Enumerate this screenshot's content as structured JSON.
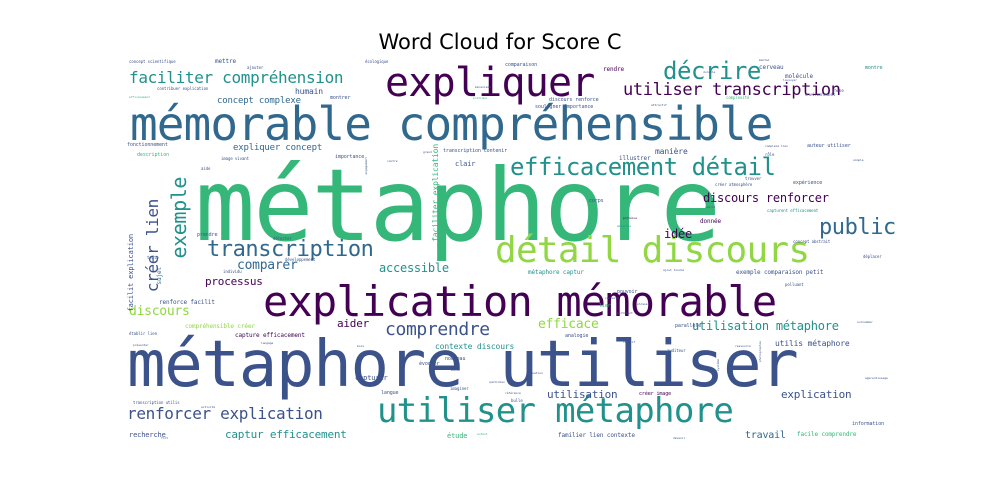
{
  "title": "Word Cloud for Score C",
  "palette": {
    "dark_purple": "#440154",
    "indigo": "#3b528b",
    "blue": "#31688e",
    "teal": "#21918c",
    "green": "#35b779",
    "lime": "#90d743",
    "yellow": "#fde725"
  },
  "words": [
    {
      "text": "métaphore",
      "weight": 100
    },
    {
      "text": "mémorable compréhensible",
      "weight": 46
    },
    {
      "text": "métaphore utiliser",
      "weight": 64
    },
    {
      "text": "explication mémorable",
      "weight": 42
    },
    {
      "text": "utiliser métaphore",
      "weight": 34
    },
    {
      "text": "expliquer",
      "weight": 40
    },
    {
      "text": "détail discours",
      "weight": 36
    },
    {
      "text": "efficacement détail",
      "weight": 24
    },
    {
      "text": "décrire",
      "weight": 24
    },
    {
      "text": "transcription",
      "weight": 22
    },
    {
      "text": "public",
      "weight": 22
    },
    {
      "text": "exemple",
      "weight": 20
    },
    {
      "text": "créer lien",
      "weight": 16
    },
    {
      "text": "comprendre",
      "weight": 18
    },
    {
      "text": "utiliser transcription",
      "weight": 17
    },
    {
      "text": "faciliter compréhension",
      "weight": 16
    },
    {
      "text": "renforcer explication",
      "weight": 16
    },
    {
      "text": "captur efficacement",
      "weight": 11
    },
    {
      "text": "comparer",
      "weight": 13
    },
    {
      "text": "accessible",
      "weight": 12
    },
    {
      "text": "discours",
      "weight": 13
    },
    {
      "text": "efficace",
      "weight": 13
    },
    {
      "text": "processus",
      "weight": 11
    },
    {
      "text": "aider",
      "weight": 11
    },
    {
      "text": "discours renforcer",
      "weight": 12
    },
    {
      "text": "idée",
      "weight": 12
    },
    {
      "text": "utilisation métaphore",
      "weight": 12
    },
    {
      "text": "explication",
      "weight": 11
    },
    {
      "text": "utilisation",
      "weight": 11
    },
    {
      "text": "travail",
      "weight": 10
    },
    {
      "text": "expliquer concept",
      "weight": 9
    },
    {
      "text": "concept complexe",
      "weight": 9
    },
    {
      "text": "humain",
      "weight": 8
    },
    {
      "text": "manière",
      "weight": 8
    },
    {
      "text": "faciliter explication",
      "weight": 8
    },
    {
      "text": "facilit explication",
      "weight": 7
    },
    {
      "text": "utilis métaphore",
      "weight": 8
    },
    {
      "text": "contexte discours",
      "weight": 8
    },
    {
      "text": "capturer",
      "weight": 7
    },
    {
      "text": "étude",
      "weight": 7
    },
    {
      "text": "recherche",
      "weight": 7
    },
    {
      "text": "illustrer",
      "weight": 6
    },
    {
      "text": "clair",
      "weight": 7
    },
    {
      "text": "sujet",
      "weight": 6
    },
    {
      "text": "compréhensible créer",
      "weight": 6
    },
    {
      "text": "capture efficacement",
      "weight": 6
    },
    {
      "text": "renforce facilit",
      "weight": 6
    },
    {
      "text": "exemple comparaison petit",
      "weight": 6
    },
    {
      "text": "métaphore captur",
      "weight": 6
    },
    {
      "text": "familier lien contexte",
      "weight": 6
    },
    {
      "text": "facile comprendre",
      "weight": 6
    },
    {
      "text": "donnée",
      "weight": 6
    },
    {
      "text": "rendre",
      "weight": 6
    },
    {
      "text": "cerveau",
      "weight": 6
    },
    {
      "text": "molécule",
      "weight": 6
    },
    {
      "text": "montre",
      "weight": 5
    },
    {
      "text": "mettre",
      "weight": 6
    },
    {
      "text": "montrer",
      "weight": 5
    },
    {
      "text": "comparaison",
      "weight": 5
    },
    {
      "text": "discours renforce",
      "weight": 5
    },
    {
      "text": "souligner importance",
      "weight": 5
    },
    {
      "text": "transcription contenir",
      "weight": 5
    },
    {
      "text": "importance",
      "weight": 5
    },
    {
      "text": "description",
      "weight": 5
    },
    {
      "text": "fonctionnement",
      "weight": 5
    },
    {
      "text": "auteur utiliser",
      "weight": 5
    },
    {
      "text": "expérience",
      "weight": 5
    },
    {
      "text": "capturent efficacement",
      "weight": 5
    },
    {
      "text": "concept abstrait",
      "weight": 4
    },
    {
      "text": "parallèle",
      "weight": 5
    },
    {
      "text": "pouvoir",
      "weight": 5
    },
    {
      "text": "évoquer",
      "weight": 5
    },
    {
      "text": "analogie",
      "weight": 5
    },
    {
      "text": "nouveau",
      "weight": 5
    },
    {
      "text": "langue",
      "weight": 5
    },
    {
      "text": "créer image",
      "weight": 5
    },
    {
      "text": "information",
      "weight": 5
    },
    {
      "text": "prendre",
      "weight": 5
    },
    {
      "text": "détecter",
      "weight": 4
    },
    {
      "text": "corps",
      "weight": 5
    },
    {
      "text": "bulle",
      "weight": 4
    },
    {
      "text": "imaginer",
      "weight": 4
    },
    {
      "text": "auditeur",
      "weight": 4
    },
    {
      "text": "ajouter",
      "weight": 4
    },
    {
      "text": "concept scientifique",
      "weight": 4
    },
    {
      "text": "contribuer explication",
      "weight": 4
    },
    {
      "text": "écologique",
      "weight": 4
    },
    {
      "text": "complexité",
      "weight": 4
    },
    {
      "text": "thèse",
      "weight": 4
    },
    {
      "text": "image vivant",
      "weight": 4
    },
    {
      "text": "aide",
      "weight": 4
    },
    {
      "text": "établir lien",
      "weight": 4
    },
    {
      "text": "transcription utilis",
      "weight": 4
    },
    {
      "text": "développement",
      "weight": 4
    },
    {
      "text": "individu",
      "weight": 4
    },
    {
      "text": "texte",
      "weight": 4
    },
    {
      "text": "polluant",
      "weight": 4
    },
    {
      "text": "déplacer",
      "weight": 4
    },
    {
      "text": "environnement",
      "weight": 4
    },
    {
      "text": "trouver",
      "weight": 4
    },
    {
      "text": "rôle",
      "weight": 4
    },
    {
      "text": "créer atmosphère",
      "weight": 4
    },
    {
      "text": "protéine",
      "weight": 3
    },
    {
      "text": "empathie",
      "weight": 3
    },
    {
      "text": "mécanisme",
      "weight": 3
    },
    {
      "text": "durable",
      "weight": 3
    },
    {
      "text": "quotidien",
      "weight": 3
    },
    {
      "text": "situation",
      "weight": 3
    },
    {
      "text": "bois",
      "weight": 3
    },
    {
      "text": "langage",
      "weight": 3
    },
    {
      "text": "présenter",
      "weight": 3
    },
    {
      "text": "activité",
      "weight": 3
    },
    {
      "text": "fort",
      "weight": 3
    },
    {
      "text": "enfant",
      "weight": 3
    },
    {
      "text": "devenir",
      "weight": 3
    },
    {
      "text": "matériau",
      "weight": 3
    },
    {
      "text": "créatif",
      "weight": 3
    },
    {
      "text": "pertinent",
      "weight": 3
    },
    {
      "text": "contexte",
      "weight": 3
    },
    {
      "text": "efficacement",
      "weight": 3
    },
    {
      "text": "attractif",
      "weight": 3
    },
    {
      "text": "engagement",
      "weight": 3
    },
    {
      "text": "simple",
      "weight": 3
    },
    {
      "text": "complexe lien",
      "weight": 3
    },
    {
      "text": "contre",
      "weight": 3
    },
    {
      "text": "grand",
      "weight": 3
    },
    {
      "text": "pratique",
      "weight": 3
    },
    {
      "text": "référence",
      "weight": 3
    },
    {
      "text": "phrasé",
      "weight": 3
    },
    {
      "text": "système",
      "weight": 3
    },
    {
      "text": "monde",
      "weight": 3
    },
    {
      "text": "esprit",
      "weight": 3
    },
    {
      "text": "ressource",
      "weight": 3
    },
    {
      "text": "lier",
      "weight": 3
    },
    {
      "text": "mental",
      "weight": 3
    },
    {
      "text": "louvoyer",
      "weight": 3
    },
    {
      "text": "surnommer",
      "weight": 3
    },
    {
      "text": "ajout touché",
      "weight": 3
    },
    {
      "text": "apprentissage",
      "weight": 3
    },
    {
      "text": "photographie",
      "weight": 3
    }
  ]
}
